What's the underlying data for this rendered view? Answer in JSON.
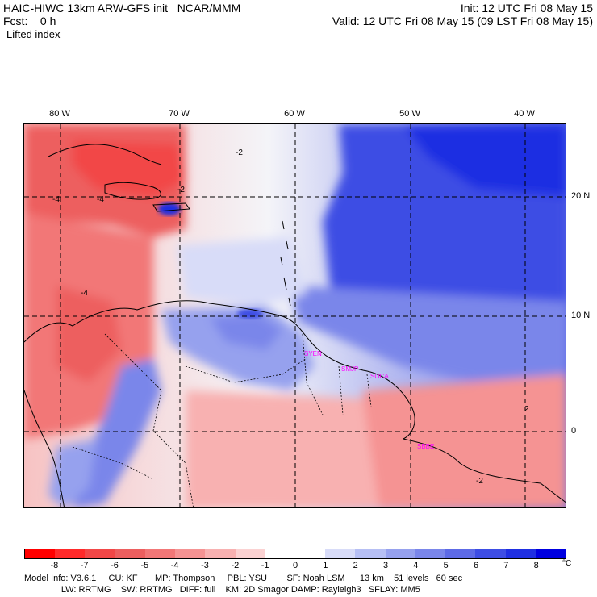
{
  "header": {
    "model_title": "HAIC-HIWC 13km ARW-GFS init   NCAR/MMM",
    "fcst": "Fcst:    0 h",
    "field": "Lifted index",
    "init": "Init: 12 UTC Fri 08 May 15",
    "valid": "Valid: 12 UTC Fri 08 May 15 (09 LST Fri 08 May 15)"
  },
  "map": {
    "lon_labels": [
      "80 W",
      "70 W",
      "60 W",
      "50 W",
      "40 W"
    ],
    "lat_labels": [
      "20 N",
      "10 N",
      "0"
    ],
    "station_labels": [
      "SYEN",
      "SMJP",
      "SOCA",
      "SBBE"
    ],
    "contour_labels": [
      "-2",
      "-4",
      "-4",
      "-4",
      "-2",
      "-2",
      "2"
    ]
  },
  "colorbar": {
    "ticks": [
      "-8",
      "-7",
      "-6",
      "-5",
      "-4",
      "-3",
      "-2",
      "-1",
      "0",
      "1",
      "2",
      "3",
      "4",
      "5",
      "6",
      "7",
      "8"
    ],
    "unit": "°C",
    "colors": [
      "#ff0000",
      "#ff2a2a",
      "#f24747",
      "#ed5f5f",
      "#f27777",
      "#f59393",
      "#f8b1b1",
      "#fbd2d2",
      "#ffffff",
      "#ffffff",
      "#d8dcf8",
      "#b6bff4",
      "#96a1ee",
      "#7a86ea",
      "#5d6ae6",
      "#3d4de4",
      "#1f2fe2",
      "#0000e0"
    ]
  },
  "footer": {
    "line1": "Model Info: V3.6.1     CU: KF       MP: Thompson     PBL: YSU        SF: Noah LSM      13 km    51 levels   60 sec",
    "line2": "               LW: RRTMG    SW: RRTMG   DIFF: full    KM: 2D Smagor DAMP: Rayleigh3   SFLAY: MM5"
  }
}
